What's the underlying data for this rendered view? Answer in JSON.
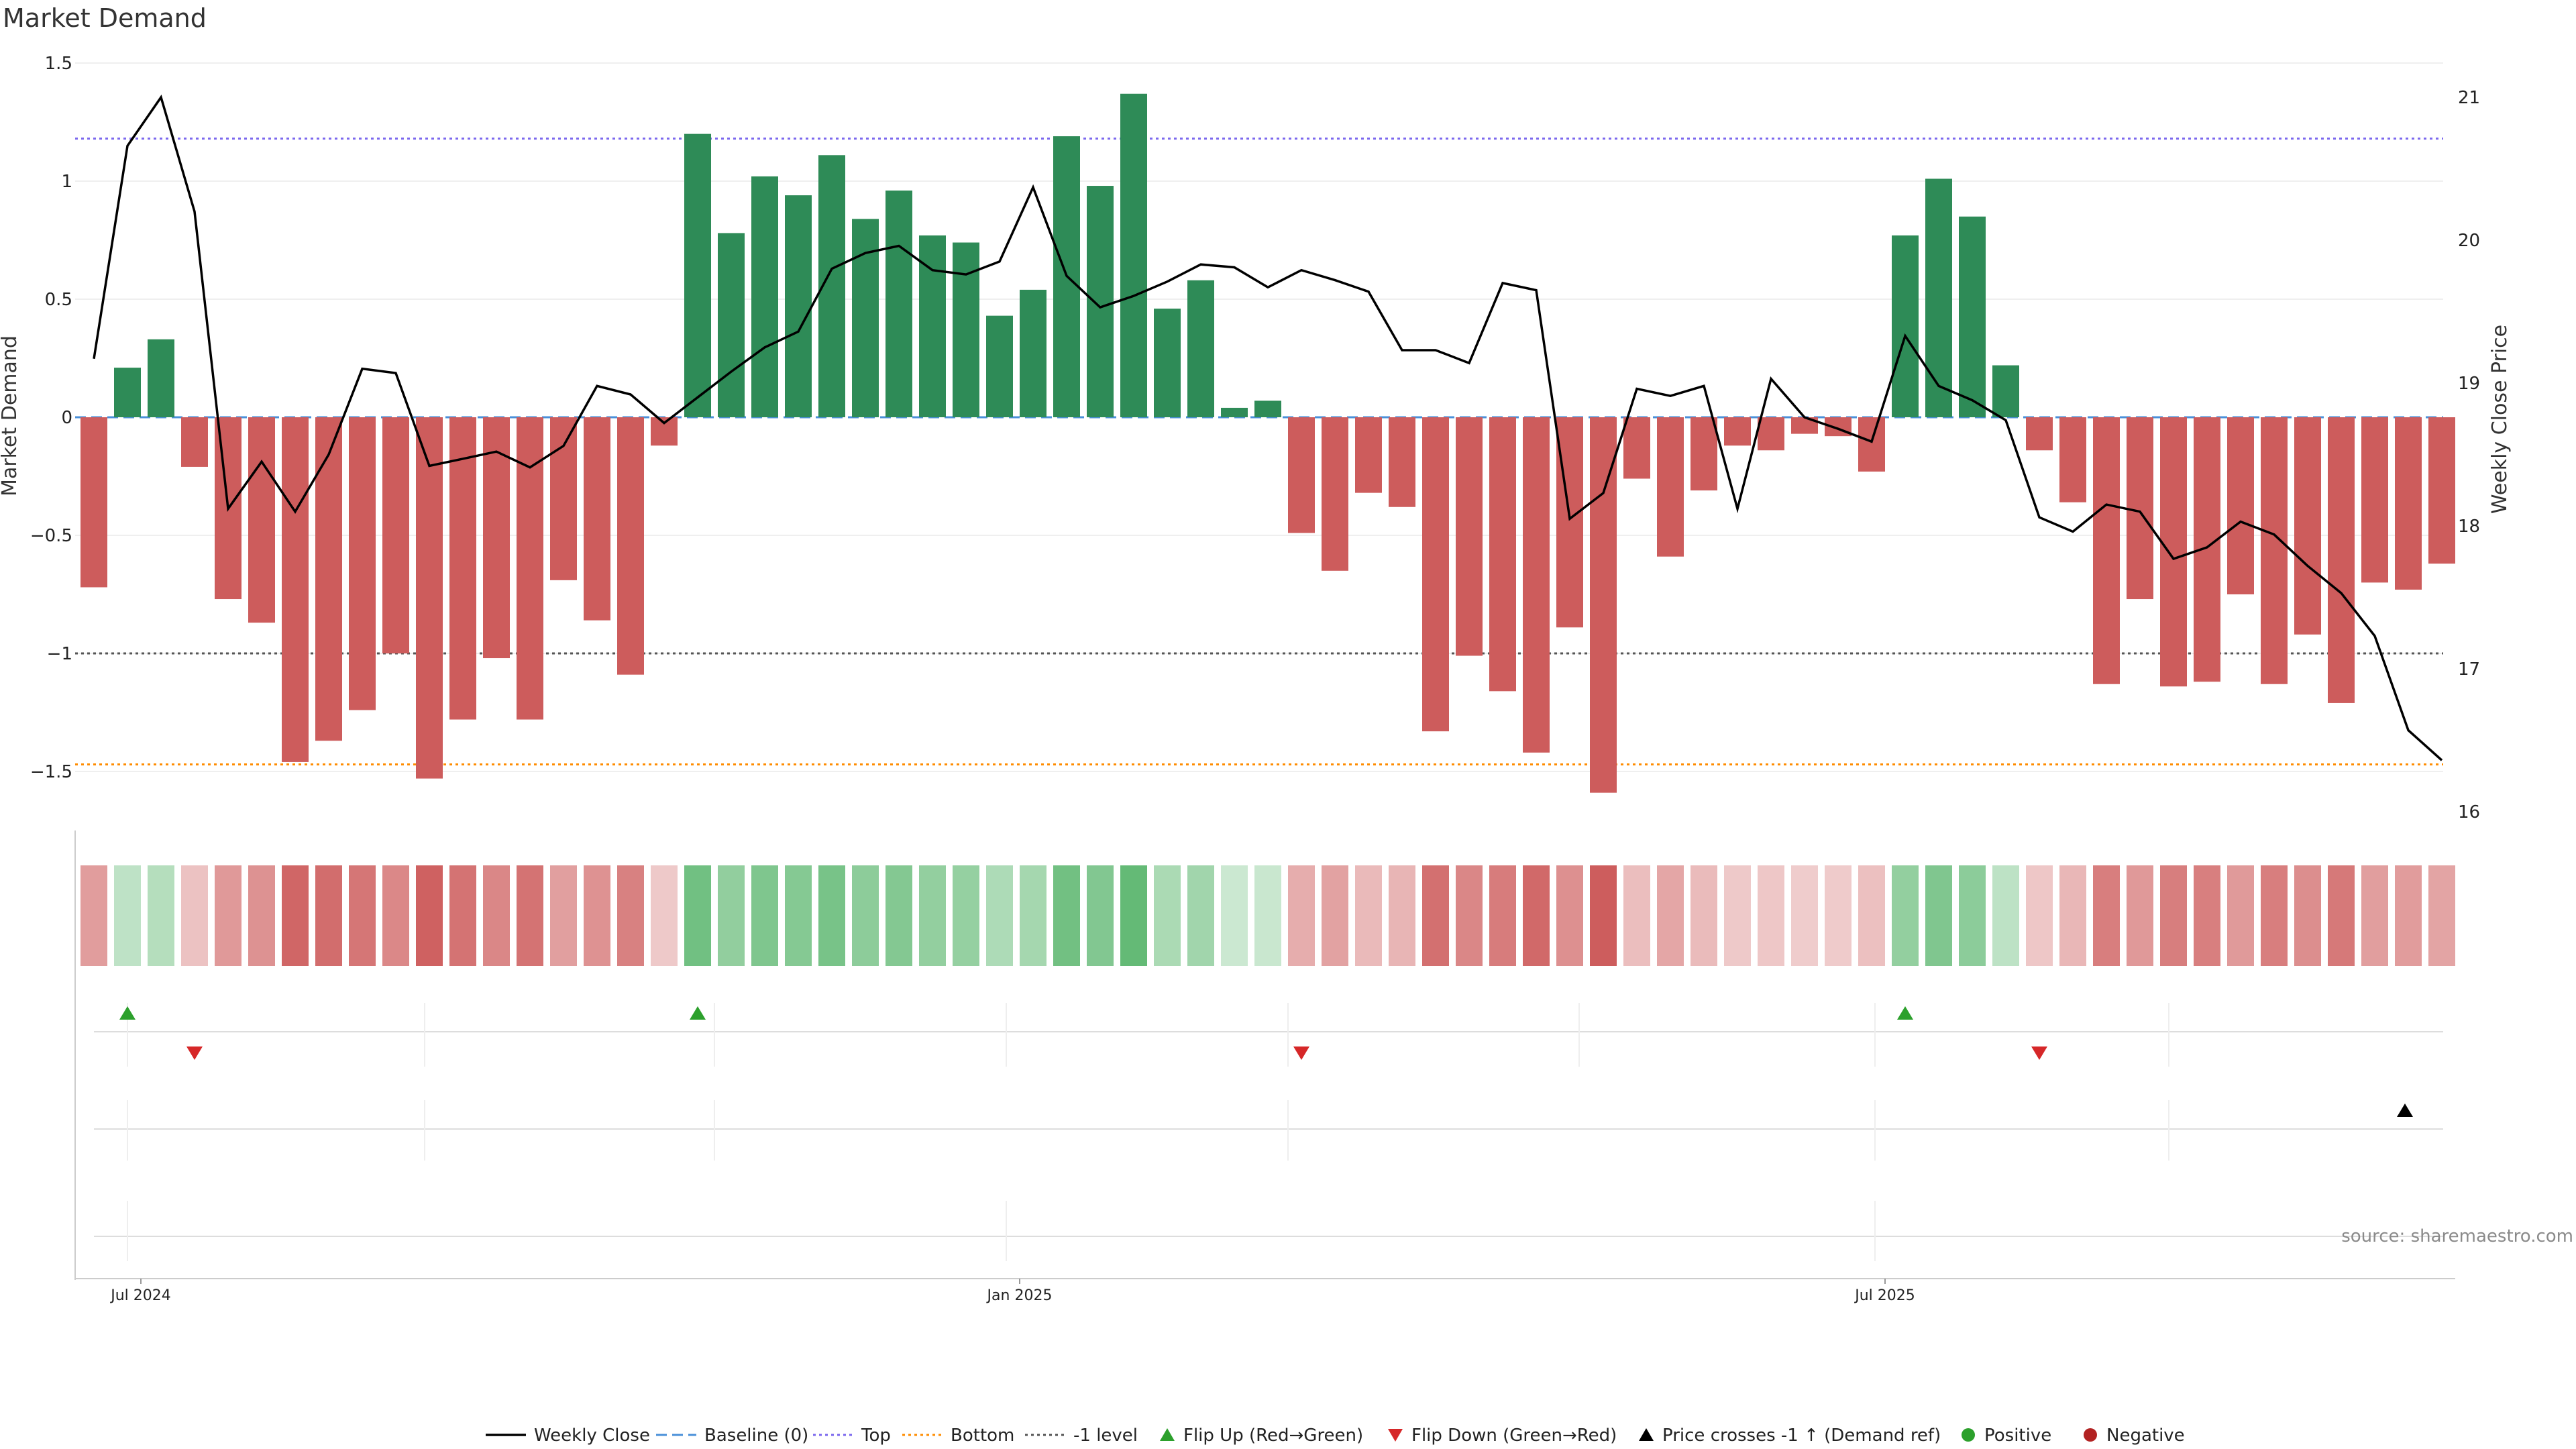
{
  "chart_data": {
    "type": "bar",
    "title": "Market Demand",
    "ylabel_left": "Market Demand",
    "ylabel_right": "Weekly Close Price",
    "ylim_left": [
      -1.75,
      1.5
    ],
    "ylim_right": [
      15.9,
      21.3
    ],
    "left_ticks": [
      1.5,
      1,
      0.5,
      0,
      -0.5,
      -1,
      -1.5
    ],
    "left_tick_labels": [
      "1.5",
      "1",
      "0.5",
      "0",
      "−0.5",
      "−1",
      "−1.5"
    ],
    "right_ticks": [
      21,
      20,
      19,
      18,
      17,
      16
    ],
    "right_tick_labels": [
      "21",
      "20",
      "19",
      "18",
      "17",
      "16"
    ],
    "x_tick_labels": [
      "Jul 2024",
      "Jan 2025",
      "Jul 2025"
    ],
    "x_tick_weeks": [
      1.4,
      27.6,
      53.4
    ],
    "reference_lines": {
      "baseline": 0,
      "top": 1.18,
      "bottom": -1.47,
      "minus_one": -1.0
    },
    "colors": {
      "positive": "#2e8b57",
      "negative": "#cd5c5c",
      "price": "#000000",
      "baseline": "#4a90d9",
      "top": "#7b68ee",
      "bottom": "#ff8c00",
      "minus_one": "#555555",
      "flip_up": "#2ca02c",
      "flip_down": "#d62728",
      "cross": "#000000",
      "pos_dot": "#2ca02c",
      "neg_dot": "#b22222"
    },
    "series": [
      {
        "name": "Market Demand",
        "values": [
          -0.72,
          0.21,
          0.33,
          -0.21,
          -0.77,
          -0.87,
          -1.46,
          -1.37,
          -1.24,
          -1.0,
          -1.53,
          -1.28,
          -1.02,
          -1.28,
          -0.69,
          -0.86,
          -1.09,
          -0.12,
          1.2,
          0.78,
          1.02,
          0.94,
          1.11,
          0.84,
          0.96,
          0.77,
          0.74,
          0.43,
          0.54,
          1.19,
          0.98,
          1.37,
          0.46,
          0.58,
          0.04,
          0.07,
          -0.49,
          -0.65,
          -0.32,
          -0.38,
          -1.33,
          -1.01,
          -1.16,
          -1.42,
          -0.89,
          -1.59,
          -0.26,
          -0.59,
          -0.31,
          -0.12,
          -0.14,
          -0.07,
          -0.08,
          -0.23,
          0.77,
          1.01,
          0.85,
          0.22,
          -0.14,
          -0.36,
          -1.13,
          -0.77,
          -1.14,
          -1.12,
          -0.75,
          -1.13,
          -0.92,
          -1.21,
          -0.7,
          -0.73,
          -0.62
        ]
      },
      {
        "name": "Weekly Close",
        "values": [
          19.17,
          20.66,
          21.0,
          20.2,
          18.12,
          18.45,
          18.1,
          18.5,
          19.1,
          19.07,
          18.42,
          18.47,
          18.52,
          18.41,
          18.56,
          18.98,
          18.92,
          18.72,
          18.9,
          19.08,
          19.25,
          19.36,
          19.8,
          19.91,
          19.96,
          19.79,
          19.76,
          19.85,
          20.37,
          19.75,
          19.53,
          19.61,
          19.71,
          19.83,
          19.81,
          19.67,
          19.79,
          19.72,
          19.64,
          19.23,
          19.23,
          19.14,
          19.7,
          19.65,
          18.05,
          18.23,
          18.96,
          18.91,
          18.98,
          18.12,
          19.03,
          18.76,
          18.68,
          18.59,
          19.33,
          18.98,
          18.88,
          18.74,
          18.06,
          17.96,
          18.15,
          18.1,
          17.77,
          17.85,
          18.03,
          17.94,
          17.72,
          17.53,
          17.23,
          16.57,
          16.36
        ]
      }
    ],
    "flip_up_weeks": [
      1,
      18,
      54
    ],
    "flip_down_weeks": [
      3,
      36,
      58
    ],
    "cross_weeks": [
      69
    ],
    "legend": [
      "Weekly Close",
      "Baseline (0)",
      "Top",
      "Bottom",
      "-1 level",
      "Flip Up (Red→Green)",
      "Flip Down (Green→Red)",
      "Price crosses -1 ↑ (Demand ref)",
      "Positive",
      "Negative"
    ],
    "legend_position": "bottom-center",
    "source": "source: sharemaestro.com"
  }
}
